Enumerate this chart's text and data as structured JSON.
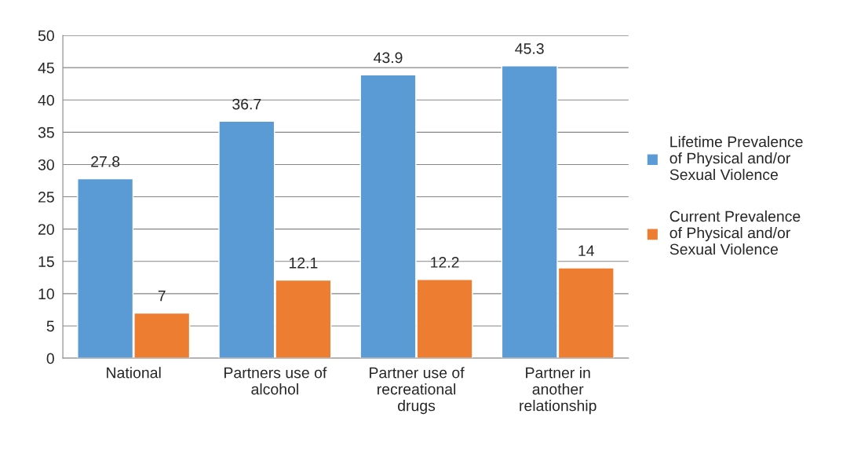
{
  "chart_data": {
    "type": "bar",
    "categories": [
      "National",
      "Partners use of\nalcohol",
      "Partner use of\nrecreational\ndrugs",
      "Partner in\nanother\nrelationship"
    ],
    "series": [
      {
        "name": "Lifetime Prevalence\nof Physical and/or\nSexual Violence",
        "color": "#5b9bd5",
        "values": [
          27.8,
          36.7,
          43.9,
          45.3
        ]
      },
      {
        "name": "Current Prevalence\nof Physical and/or\nSexual Violence",
        "color": "#ed7d31",
        "values": [
          7,
          12.1,
          12.2,
          14
        ]
      }
    ],
    "ylim": [
      0,
      50
    ],
    "yticks": [
      0,
      5,
      10,
      15,
      20,
      25,
      30,
      35,
      40,
      45,
      50
    ],
    "grid": "y",
    "legend": "right",
    "data_labels": true
  }
}
